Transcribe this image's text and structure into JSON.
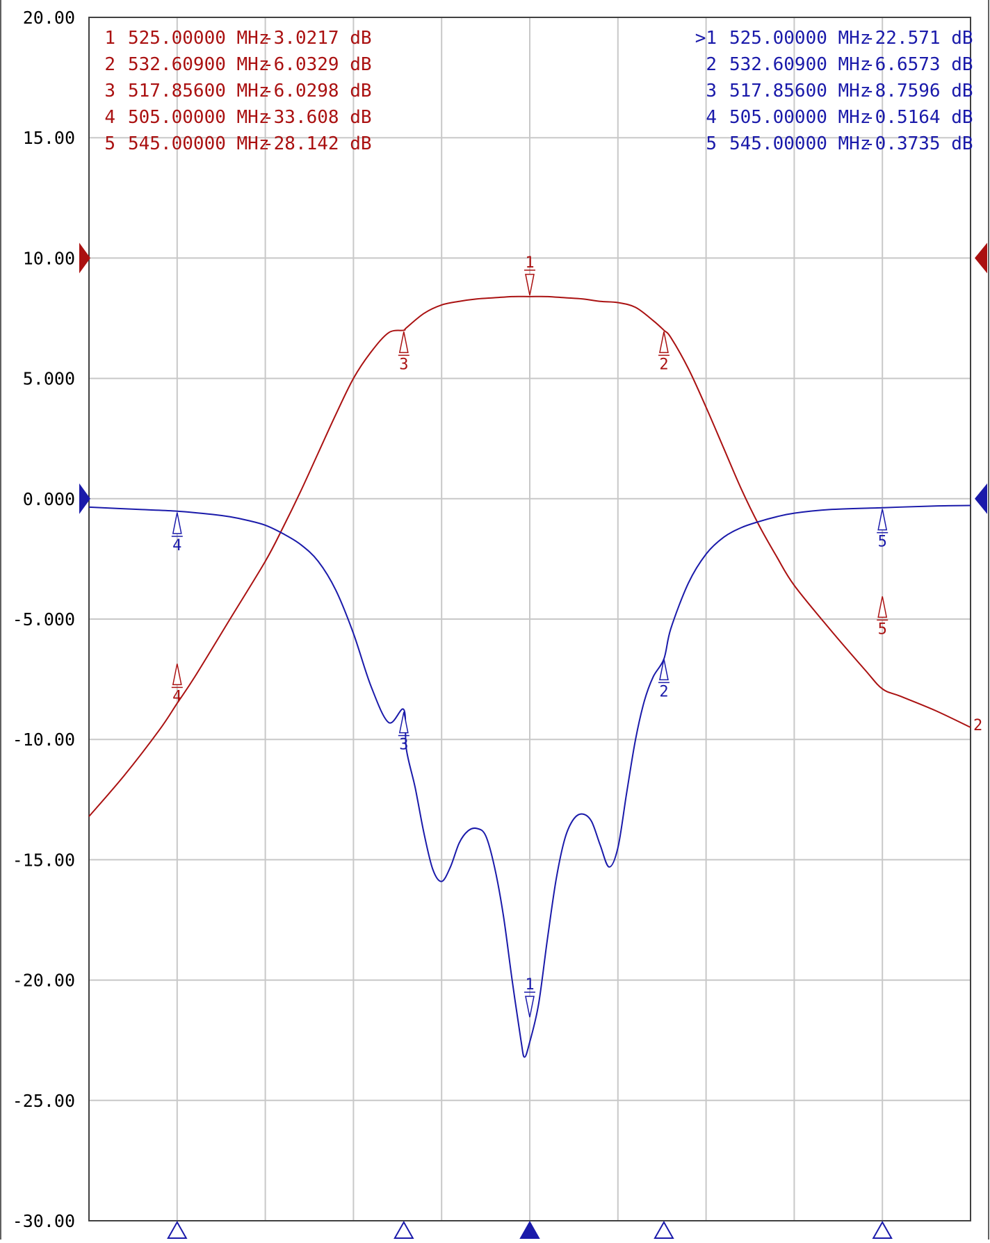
{
  "colors": {
    "trace1": "#aa1111",
    "trace2": "#1a1aaa",
    "grid": "#c8c8c8",
    "frame": "#404040",
    "background": "#ffffff"
  },
  "chart_data": {
    "type": "line",
    "title": "",
    "xlabel": "",
    "ylabel": "",
    "xlim": [
      500,
      550
    ],
    "ylim": [
      -30,
      20
    ],
    "grid": true,
    "y_ticks": [
      "20.00",
      "15.00",
      "10.00",
      "5.000",
      "0.000",
      "-5.000",
      "-10.00",
      "-15.00",
      "-20.00",
      "-25.00",
      "-30.00"
    ],
    "y_tick_values": [
      20,
      15,
      10,
      5,
      0,
      -5,
      -10,
      -15,
      -20,
      -25,
      -30
    ],
    "x_gridlines": [
      505,
      510,
      515,
      520,
      525,
      530,
      535,
      540,
      545
    ],
    "reference_level": 10,
    "reference_level_2": 0,
    "series": [
      {
        "x": [
          500,
          502,
          504,
          505,
          506,
          508,
          510,
          511,
          512,
          513,
          514,
          515,
          516,
          517,
          517.856,
          518,
          519,
          520,
          521,
          522,
          523,
          524,
          525,
          526,
          527,
          528,
          529,
          530,
          531,
          532,
          532.609,
          533,
          534,
          535,
          536,
          537,
          538,
          539,
          540,
          542,
          544,
          545,
          546,
          548,
          550
        ],
        "y": [
          -13.2,
          -11.5,
          -9.6,
          -8.5,
          -7.4,
          -5.0,
          -2.6,
          -1.2,
          0.3,
          1.9,
          3.5,
          5.0,
          6.1,
          6.9,
          7.0,
          7.1,
          7.7,
          8.05,
          8.2,
          8.3,
          8.35,
          8.4,
          8.4,
          8.4,
          8.35,
          8.3,
          8.2,
          8.15,
          7.95,
          7.4,
          7.0,
          6.7,
          5.4,
          3.8,
          2.1,
          0.4,
          -1.1,
          -2.4,
          -3.6,
          -5.4,
          -7.1,
          -7.9,
          -8.2,
          -8.8,
          -9.5
        ]
      },
      {
        "x": [
          500,
          503,
          505,
          507,
          508,
          509,
          510,
          511,
          512,
          513,
          514,
          515,
          516,
          517,
          517.856,
          518,
          518.5,
          519,
          519.5,
          520,
          520.5,
          521,
          521.5,
          522,
          522.5,
          523,
          523.5,
          524,
          524.5,
          524.7,
          525,
          525.5,
          526,
          526.5,
          527,
          527.5,
          528,
          528.5,
          529,
          529.5,
          530,
          530.5,
          531,
          531.5,
          532,
          532.609,
          533,
          534,
          535,
          536,
          537,
          538,
          539,
          540,
          542,
          545,
          548,
          550
        ],
        "y": [
          -0.35,
          -0.45,
          -0.5164,
          -0.65,
          -0.75,
          -0.9,
          -1.1,
          -1.45,
          -1.9,
          -2.6,
          -3.8,
          -5.6,
          -7.8,
          -9.3,
          -8.76,
          -10.4,
          -12.0,
          -13.9,
          -15.4,
          -15.9,
          -15.3,
          -14.3,
          -13.8,
          -13.7,
          -14.0,
          -15.3,
          -17.3,
          -20.0,
          -22.5,
          -23.2,
          -22.571,
          -21.0,
          -18.3,
          -15.8,
          -14.1,
          -13.3,
          -13.1,
          -13.4,
          -14.4,
          -15.3,
          -14.5,
          -12.2,
          -10.0,
          -8.4,
          -7.4,
          -6.657,
          -5.4,
          -3.5,
          -2.3,
          -1.6,
          -1.2,
          -0.95,
          -0.75,
          -0.6,
          -0.45,
          -0.3735,
          -0.3,
          -0.28
        ]
      }
    ],
    "marker_table_1": [
      {
        "no": "1",
        "freq": "525.00000 MHz",
        "value": "-3.0217 dB"
      },
      {
        "no": "2",
        "freq": "532.60900 MHz",
        "value": "-6.0329 dB"
      },
      {
        "no": "3",
        "freq": "517.85600 MHz",
        "value": "-6.0298 dB"
      },
      {
        "no": "4",
        "freq": "505.00000 MHz",
        "value": "-33.608 dB"
      },
      {
        "no": "5",
        "freq": "545.00000 MHz",
        "value": "-28.142 dB"
      }
    ],
    "marker_table_2": [
      {
        "no": ">1",
        "freq": "525.00000 MHz",
        "value": "-22.571 dB"
      },
      {
        "no": "2",
        "freq": "532.60900 MHz",
        "value": "-6.6573 dB"
      },
      {
        "no": "3",
        "freq": "517.85600 MHz",
        "value": "-8.7596 dB"
      },
      {
        "no": "4",
        "freq": "505.00000 MHz",
        "value": "-0.5164 dB"
      },
      {
        "no": "5",
        "freq": "545.00000 MHz",
        "value": "-0.3735 dB"
      }
    ],
    "trace_markers_1": [
      {
        "label": "1",
        "x": 525,
        "y": 8.4,
        "dir": "down"
      },
      {
        "label": "2",
        "x": 532.609,
        "y": 7.0,
        "dir": "up"
      },
      {
        "label": "3",
        "x": 517.856,
        "y": 7.0,
        "dir": "up"
      },
      {
        "label": "4",
        "x": 505,
        "y": -6.8,
        "dir": "up"
      },
      {
        "label": "5",
        "x": 545,
        "y": -4.0,
        "dir": "up"
      }
    ],
    "trace_markers_2": [
      {
        "label": "1",
        "x": 525,
        "y": -21.6,
        "dir": "down"
      },
      {
        "label": "2",
        "x": 532.609,
        "y": -6.6,
        "dir": "up"
      },
      {
        "label": "3",
        "x": 517.856,
        "y": -8.8,
        "dir": "up"
      },
      {
        "label": "4",
        "x": 505,
        "y": -0.52,
        "dir": "up"
      },
      {
        "label": "5",
        "x": 545,
        "y": -0.37,
        "dir": "up"
      }
    ],
    "bottom_markers": [
      {
        "x": 505,
        "active": false
      },
      {
        "x": 517.856,
        "active": false
      },
      {
        "x": 525,
        "active": true
      },
      {
        "x": 532.609,
        "active": false
      },
      {
        "x": 545,
        "active": false
      }
    ],
    "trace_end_label": "2"
  }
}
